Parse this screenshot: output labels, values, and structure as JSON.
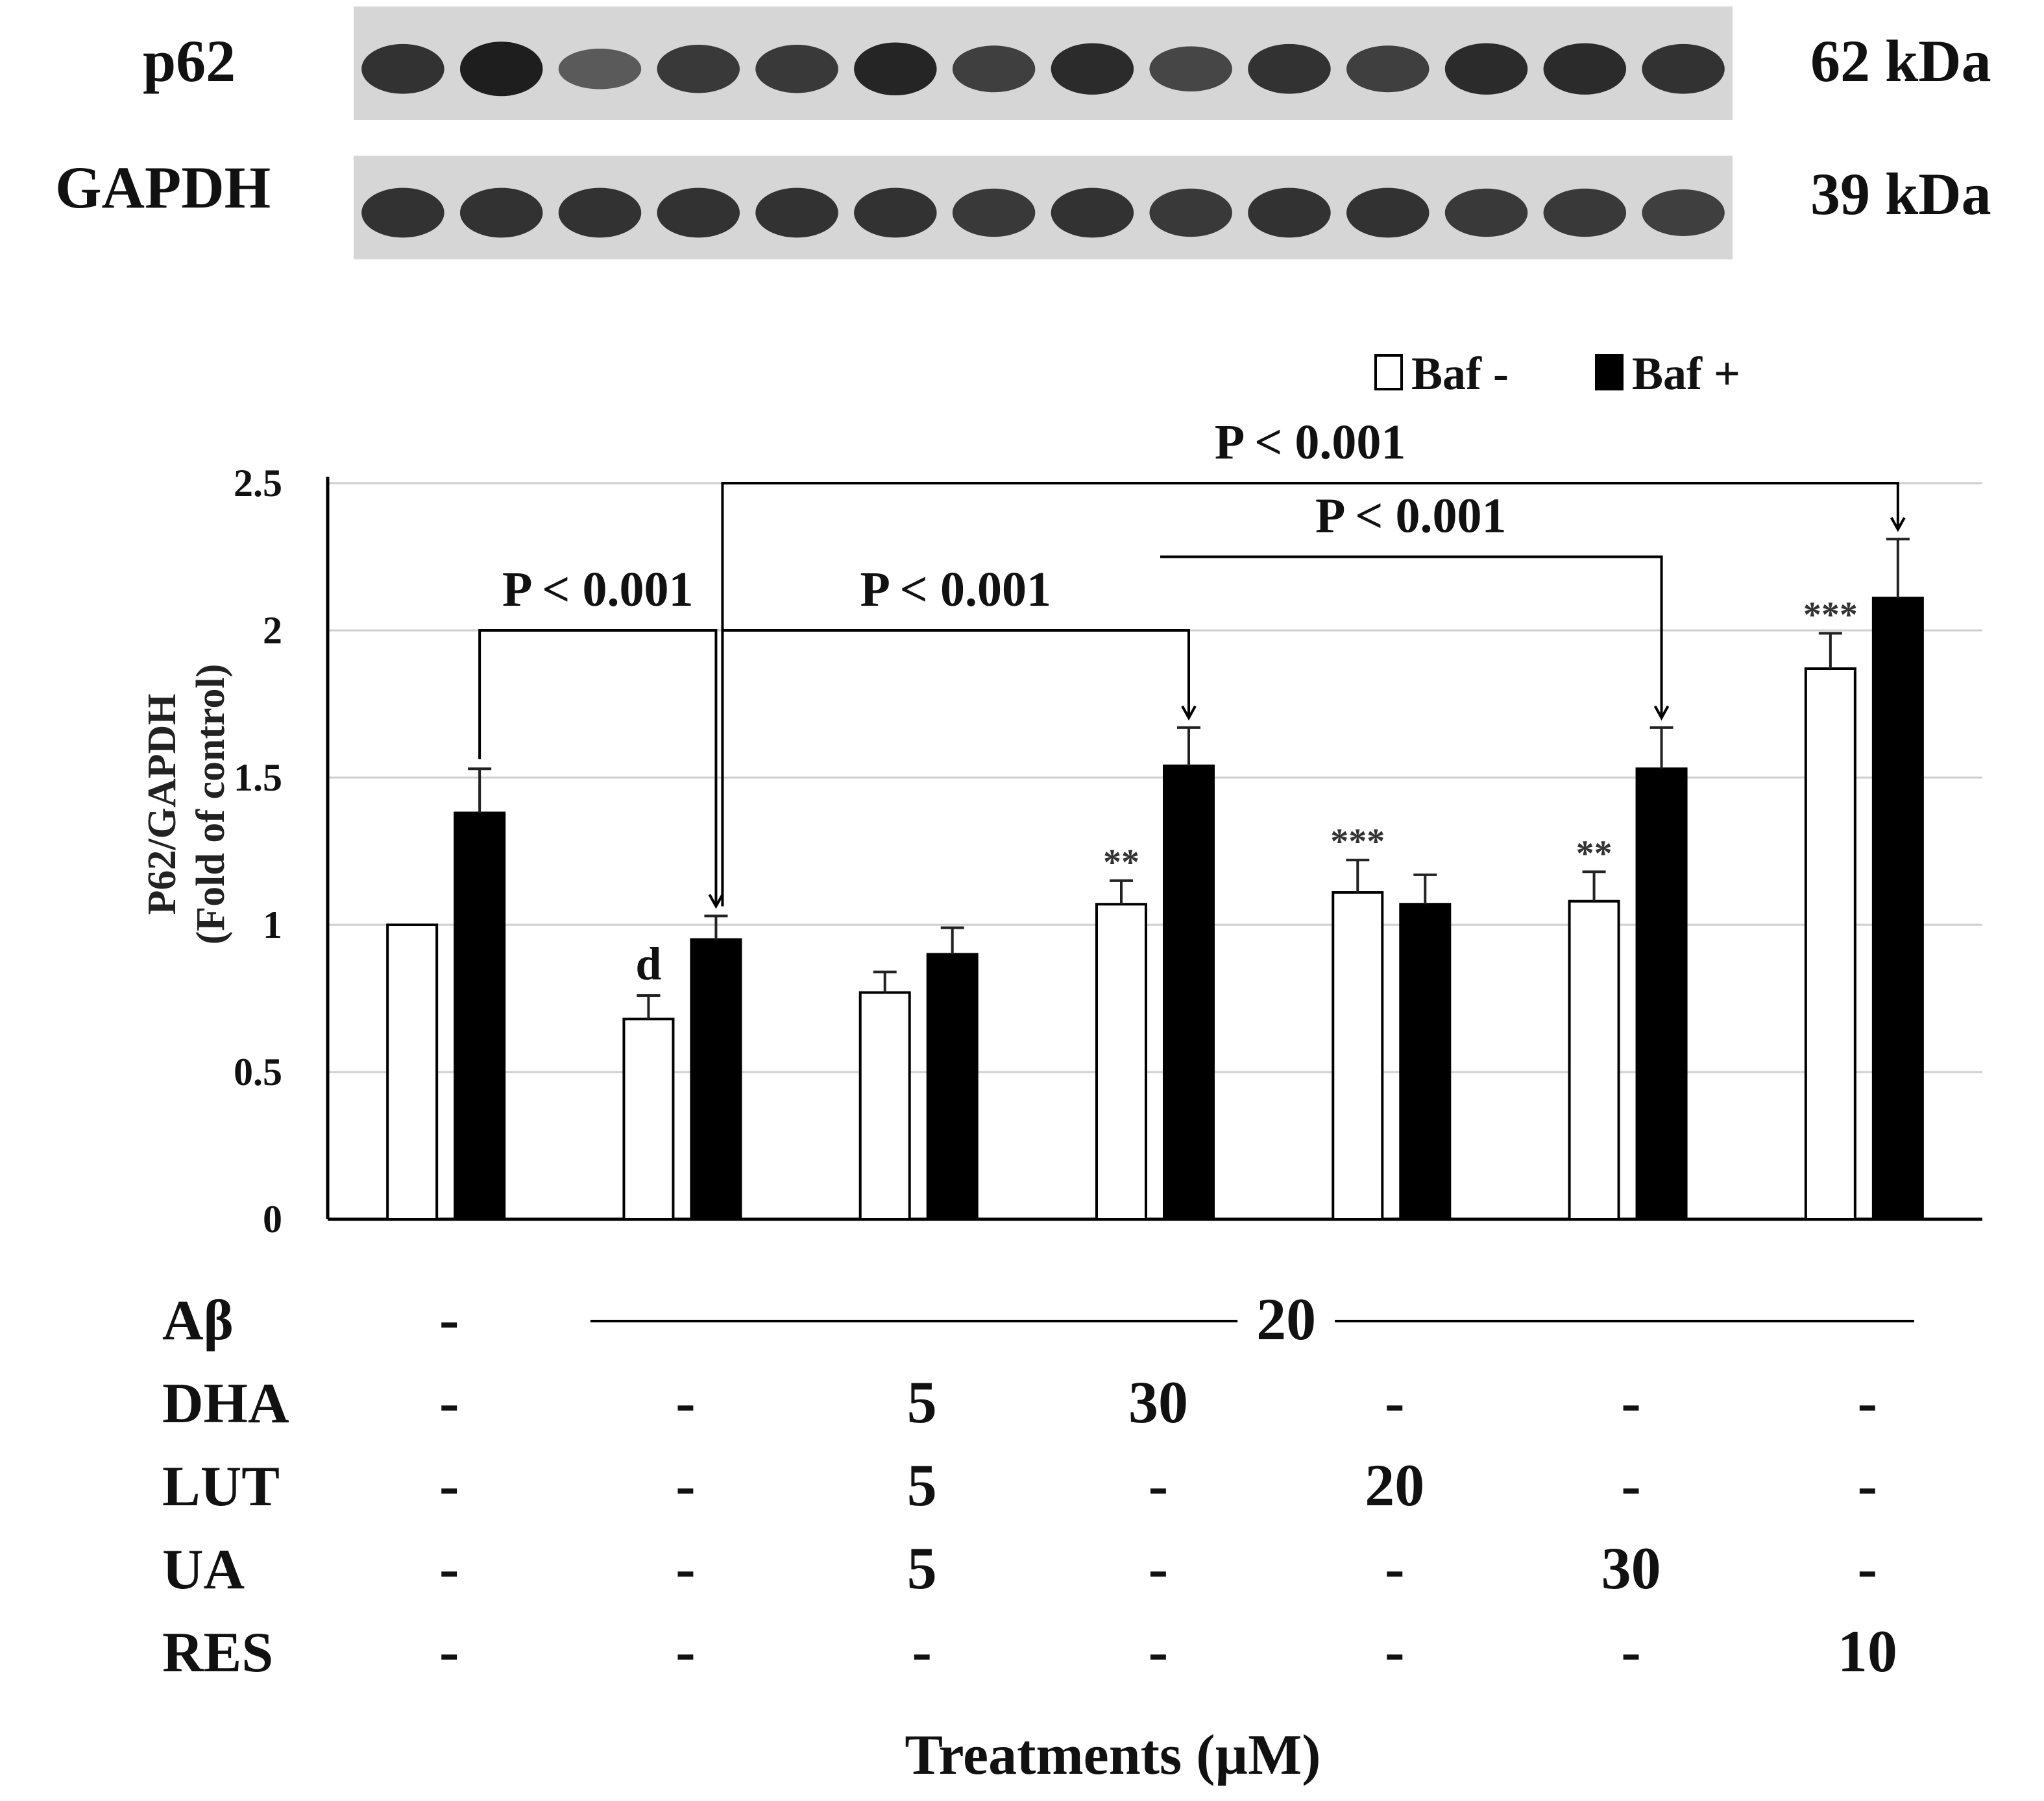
{
  "blot": {
    "rows": [
      {
        "name": "p62",
        "size": "62 kDa",
        "lane_intensity": [
          0.85,
          1.0,
          0.55,
          0.8,
          0.8,
          0.95,
          0.75,
          0.9,
          0.7,
          0.85,
          0.75,
          0.9,
          0.9,
          0.85
        ]
      },
      {
        "name": "GAPDH",
        "size": "39 kDa",
        "lane_intensity": [
          0.85,
          0.85,
          0.85,
          0.85,
          0.85,
          0.85,
          0.8,
          0.85,
          0.8,
          0.85,
          0.85,
          0.8,
          0.8,
          0.75
        ]
      }
    ]
  },
  "chart_data": {
    "type": "bar",
    "ylabel_line1": "P62/GAPDH",
    "ylabel_line2": "(Fold  of control)",
    "ylim": [
      0,
      2.5
    ],
    "yticks": [
      0,
      0.5,
      1,
      1.5,
      2,
      2.5
    ],
    "ytick_labels": [
      "0",
      "0.5",
      "1",
      "1.5",
      "2",
      "2.5"
    ],
    "grid": true,
    "legend_position": "top-right",
    "categories": [
      "1",
      "2",
      "3",
      "4",
      "5",
      "6",
      "7"
    ],
    "series": [
      {
        "name": "Baf -",
        "color": "#ffffff",
        "values": [
          1.0,
          0.68,
          0.77,
          1.07,
          1.11,
          1.08,
          1.87
        ],
        "errors": [
          0.0,
          0.08,
          0.07,
          0.08,
          0.11,
          0.1,
          0.12
        ]
      },
      {
        "name": "Baf +",
        "color": "#000000",
        "values": [
          1.38,
          0.95,
          0.9,
          1.54,
          1.07,
          1.53,
          2.11
        ],
        "errors": [
          0.15,
          0.08,
          0.09,
          0.13,
          0.1,
          0.14,
          0.2
        ]
      }
    ],
    "significance_marks": [
      {
        "text": "d",
        "category": 1,
        "series": 0
      },
      {
        "text": "**",
        "category": 3,
        "series": 0
      },
      {
        "text": "***",
        "category": 4,
        "series": 0
      },
      {
        "text": "**",
        "category": 5,
        "series": 0
      },
      {
        "text": "***",
        "category": 6,
        "series": 0
      }
    ],
    "comparisons": [
      {
        "label": "P < 0.001",
        "from_category": 0,
        "to_category": 1,
        "bar_value": 2.0
      },
      {
        "label": "P < 0.001",
        "from_category": 1,
        "to_category": 3,
        "bar_value": 2.0
      },
      {
        "label": "P < 0.001",
        "from_category": 3,
        "to_category": 5,
        "bar_value": 2.25
      },
      {
        "label": "P < 0.001",
        "from_category": 1,
        "to_category": 6,
        "bar_value": 2.5
      }
    ],
    "treatments": {
      "xlabel": "Treatments (µM)",
      "abeta": {
        "label": "Aβ",
        "first": "-",
        "shared_value": "20"
      },
      "rows": [
        {
          "label": "DHA",
          "values": [
            "-",
            "-",
            "5",
            "30",
            "-",
            "-",
            "-"
          ]
        },
        {
          "label": "LUT",
          "values": [
            "-",
            "-",
            "5",
            "-",
            "20",
            "-",
            "-"
          ]
        },
        {
          "label": "UA",
          "values": [
            "-",
            "-",
            "5",
            "-",
            "-",
            "30",
            "-"
          ]
        },
        {
          "label": "RES",
          "values": [
            "-",
            "-",
            "-",
            "-",
            "-",
            "-",
            "10"
          ]
        }
      ]
    }
  }
}
